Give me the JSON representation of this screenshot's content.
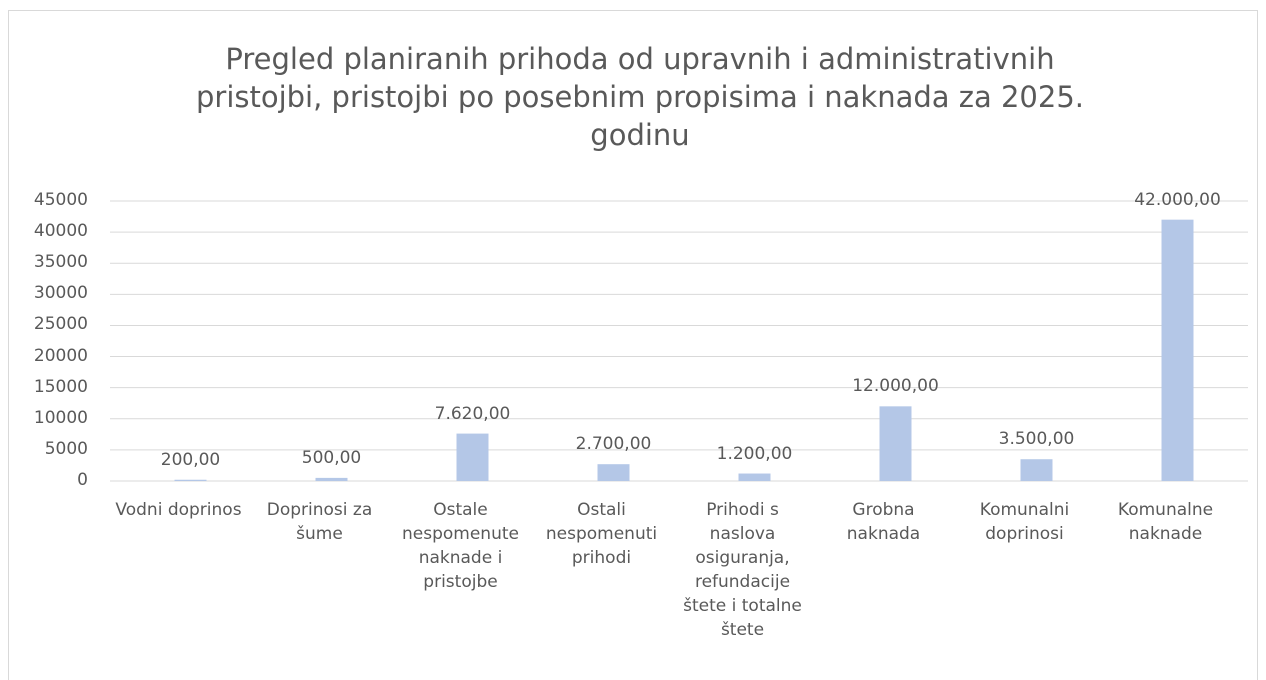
{
  "chart_data": {
    "type": "bar",
    "title": "Pregled planiranih prihoda od upravnih i administrativnih pristojbi, pristojbi po posebnim propisima i naknada za 2025. godinu",
    "categories": [
      "Vodni doprinos",
      "Doprinosi za šume",
      "Ostale nespomenute naknade i pristojbe",
      "Ostali nespomenuti prihodi",
      "Prihodi s naslova osiguranja, refundacije štete i totalne štete",
      "Grobna naknada",
      "Komunalni doprinosi",
      "Komunalne naknade"
    ],
    "values": [
      200,
      500,
      7620,
      2700,
      1200,
      12000,
      3500,
      42000
    ],
    "value_labels": [
      "200,00",
      "500,00",
      "7.620,00",
      "2.700,00",
      "1.200,00",
      "12.000,00",
      "3.500,00",
      "42.000,00"
    ],
    "color": "#b4c7e7",
    "ylim": [
      0,
      45000
    ],
    "yticks": [
      0,
      5000,
      10000,
      15000,
      20000,
      25000,
      30000,
      35000,
      40000,
      45000
    ],
    "grid": true
  }
}
